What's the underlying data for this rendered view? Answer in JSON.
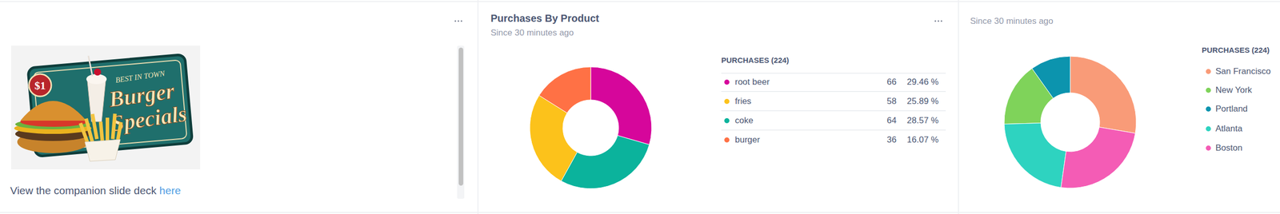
{
  "text_card": {
    "image_texts": [
      "$1",
      "BEST IN TOWN",
      "Burger",
      "Specials"
    ],
    "text": "View the companion slide deck",
    "link_text": "here"
  },
  "chart_data": [
    {
      "type": "donut",
      "title": "Purchases By Product",
      "subtitle": "Since 30 minutes ago",
      "legend_title": "PURCHASES (224)",
      "legend": "right",
      "categories": [
        "root beer",
        "fries",
        "coke",
        "burger"
      ],
      "values": [
        66,
        58,
        64,
        36
      ],
      "percent_labels": [
        "29.46 %",
        "25.89 %",
        "28.57 %",
        "16.07 %"
      ],
      "colors": [
        "#d6069b",
        "#fcc21b",
        "#0bb39c",
        "#ff7145"
      ]
    },
    {
      "type": "donut",
      "subtitle": "Since 30 minutes ago",
      "legend_title": "PURCHASES (224)",
      "legend": "right",
      "categories": [
        "San Francisco",
        "New York",
        "Portland",
        "Atlanta",
        "Boston"
      ],
      "values": [
        62,
        35,
        22,
        50,
        55
      ],
      "colors": [
        "#f99b78",
        "#7fd35a",
        "#0c94ae",
        "#2ed3c0",
        "#f45cb5"
      ]
    }
  ]
}
